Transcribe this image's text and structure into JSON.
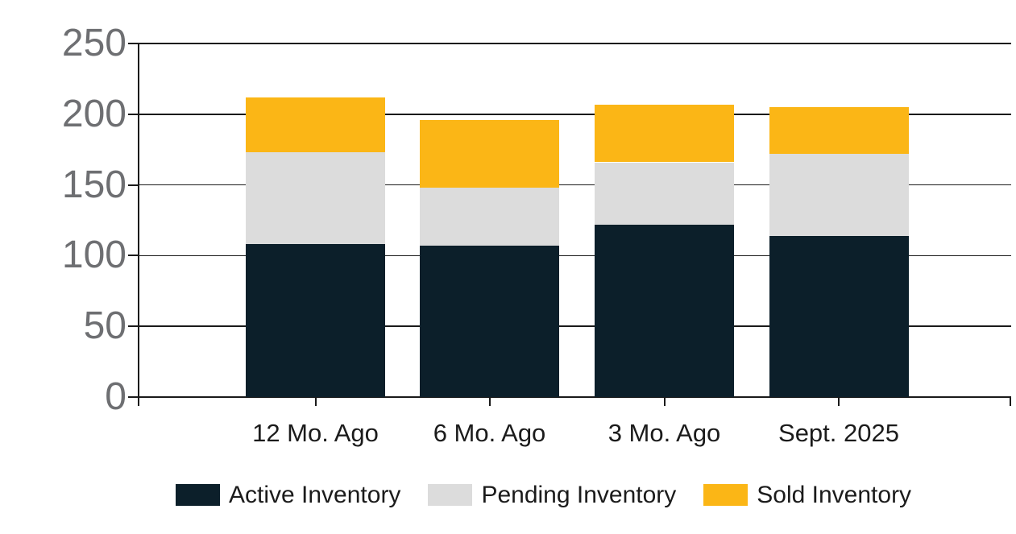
{
  "chart_data": {
    "type": "bar",
    "variant": "stacked",
    "title": "",
    "xlabel": "",
    "ylabel": "",
    "categories": [
      "12 Mo. Ago",
      "6 Mo. Ago",
      "3 Mo. Ago",
      "Sept. 2025"
    ],
    "series": [
      {
        "name": "Active Inventory",
        "color": "#0C1F2A",
        "values": [
          108,
          107,
          122,
          114
        ]
      },
      {
        "name": "Pending Inventory",
        "color": "#DCDCDC",
        "values": [
          65,
          41,
          44,
          58
        ]
      },
      {
        "name": "Sold Inventory",
        "color": "#FBB616",
        "values": [
          39,
          48,
          41,
          33
        ]
      }
    ],
    "stack_totals": [
      212,
      196,
      207,
      205
    ],
    "ylim": [
      0,
      250
    ],
    "yticks": [
      0,
      50,
      100,
      150,
      200,
      250
    ],
    "grid": "horizontal",
    "legend_position": "bottom"
  },
  "colors": {
    "background": "#FFFFFF",
    "grid_line": "#1A1A1A",
    "axis_line": "#1A1A1A",
    "y_tick_label": "#6E6F72",
    "x_tick_label": "#1B1B1B",
    "legend_text": "#1B1B1B"
  }
}
